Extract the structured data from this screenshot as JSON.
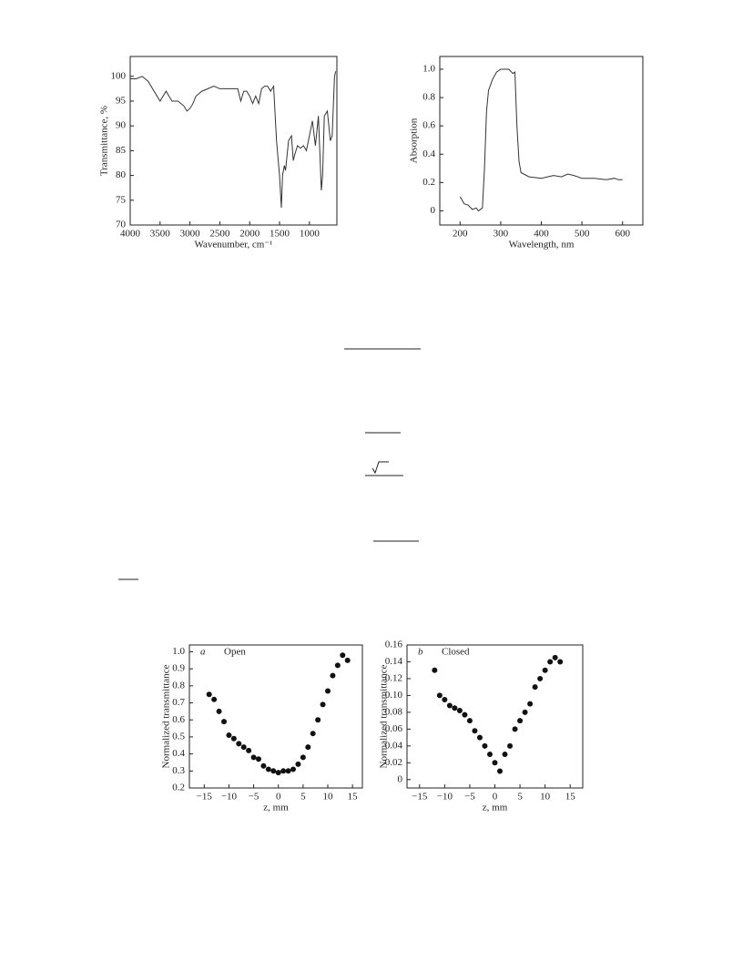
{
  "chart_data": [
    {
      "type": "line",
      "xlabel": "Wavenumber, cm⁻¹",
      "ylabel": "Transmittance, %",
      "xlim": [
        4000,
        540
      ],
      "ylim": [
        70,
        104
      ],
      "xticks": [
        4000,
        3500,
        3000,
        2500,
        2000,
        1500,
        1000
      ],
      "yticks": [
        70,
        75,
        80,
        85,
        90,
        95,
        100
      ],
      "color": "#333333",
      "x": [
        4000,
        3900,
        3800,
        3700,
        3600,
        3500,
        3450,
        3400,
        3350,
        3300,
        3200,
        3100,
        3050,
        3000,
        2950,
        2900,
        2800,
        2700,
        2600,
        2500,
        2400,
        2300,
        2200,
        2150,
        2100,
        2050,
        2000,
        1950,
        1900,
        1850,
        1800,
        1750,
        1700,
        1650,
        1600,
        1550,
        1500,
        1470,
        1450,
        1420,
        1400,
        1350,
        1300,
        1270,
        1250,
        1200,
        1150,
        1100,
        1050,
        1000,
        950,
        900,
        850,
        800,
        780,
        750,
        700,
        650,
        620,
        580,
        560
      ],
      "values": [
        99.5,
        99.5,
        100,
        99,
        97,
        95,
        96,
        97,
        96,
        95,
        95,
        94,
        93,
        93.5,
        94.5,
        96,
        97,
        97.5,
        98,
        97.5,
        97.5,
        97.5,
        97.5,
        95,
        97,
        97,
        96,
        94.5,
        96,
        94.5,
        97.5,
        98,
        98,
        97,
        98,
        87,
        80,
        73.5,
        80,
        82,
        81,
        87,
        88,
        83,
        84,
        86,
        85.5,
        86,
        85,
        88,
        91,
        86,
        92,
        77,
        80,
        92,
        93,
        87,
        88,
        100,
        101
      ]
    },
    {
      "type": "line",
      "xlabel": "Wavelength, nm",
      "ylabel": "Absorption",
      "xlim": [
        150,
        650
      ],
      "ylim": [
        -0.1,
        1.09
      ],
      "xticks": [
        200,
        300,
        400,
        500,
        600
      ],
      "yticks": [
        0,
        0.2,
        0.4,
        0.6,
        0.8,
        {
          "value": 1,
          "label": "1.0"
        }
      ],
      "color": "#333333",
      "x": [
        200,
        210,
        220,
        230,
        240,
        245,
        255,
        260,
        265,
        270,
        280,
        290,
        300,
        320,
        330,
        335,
        340,
        345,
        350,
        370,
        400,
        430,
        450,
        465,
        480,
        500,
        530,
        560,
        580,
        590,
        600
      ],
      "values": [
        0.1,
        0.05,
        0.04,
        0.01,
        0.02,
        0,
        0.02,
        0.3,
        0.7,
        0.85,
        0.93,
        0.98,
        1,
        1,
        0.97,
        0.98,
        0.6,
        0.35,
        0.27,
        0.24,
        0.23,
        0.25,
        0.24,
        0.26,
        0.25,
        0.23,
        0.23,
        0.22,
        0.23,
        0.22,
        0.22
      ]
    },
    {
      "type": "scatter",
      "panel_label": "a",
      "annotation": "Open",
      "xlabel": "z, mm",
      "ylabel": "Normalized transmittance",
      "xlim": [
        -18,
        17
      ],
      "ylim": [
        0.2,
        1.04
      ],
      "xticks": [
        {
          "value": -15,
          "label": "−15"
        },
        {
          "value": -10,
          "label": "−10"
        },
        {
          "value": -5,
          "label": "−5"
        },
        0,
        5,
        10,
        15
      ],
      "yticks": [
        0.2,
        0.3,
        0.4,
        0.5,
        0.6,
        0.7,
        0.8,
        0.9,
        {
          "value": 1,
          "label": "1.0"
        }
      ],
      "color": "#111111",
      "x": [
        -14,
        -13,
        -12,
        -11,
        -10,
        -9,
        -8,
        -7,
        -6,
        -5,
        -4,
        -3,
        -2,
        -1,
        0,
        1,
        2,
        3,
        4,
        5,
        6,
        7,
        8,
        9,
        10,
        11,
        12,
        13,
        14
      ],
      "values": [
        0.75,
        0.72,
        0.65,
        0.59,
        0.51,
        0.49,
        0.46,
        0.44,
        0.42,
        0.38,
        0.37,
        0.33,
        0.31,
        0.3,
        0.29,
        0.3,
        0.3,
        0.31,
        0.34,
        0.38,
        0.44,
        0.52,
        0.6,
        0.69,
        0.77,
        0.86,
        0.92,
        0.98,
        0.95
      ]
    },
    {
      "type": "scatter",
      "panel_label": "b",
      "annotation": "Closed",
      "xlabel": "z, mm",
      "ylabel": "Normalized transmittance",
      "xlim": [
        -17.5,
        17.5
      ],
      "ylim": [
        -0.01,
        0.16
      ],
      "xticks": [
        {
          "value": -15,
          "label": "−15"
        },
        {
          "value": -10,
          "label": "−10"
        },
        {
          "value": -5,
          "label": "−5"
        },
        0,
        5,
        10,
        15
      ],
      "yticks": [
        0,
        0.02,
        0.04,
        0.06,
        0.08,
        {
          "value": 0.1,
          "label": "0.10"
        },
        0.12,
        0.14,
        0.16
      ],
      "color": "#111111",
      "x": [
        -12,
        -11,
        -10,
        -9,
        -8,
        -7,
        -6,
        -5,
        -4,
        -3,
        -2,
        -1,
        0,
        1,
        2,
        3,
        4,
        5,
        6,
        7,
        8,
        9,
        10,
        11,
        12,
        13
      ],
      "values": [
        0.13,
        0.1,
        0.095,
        0.088,
        0.085,
        0.082,
        0.077,
        0.07,
        0.058,
        0.05,
        0.04,
        0.03,
        0.02,
        0.01,
        0.03,
        0.04,
        0.06,
        0.07,
        0.08,
        0.09,
        0.11,
        0.12,
        0.13,
        0.14,
        0.145,
        0.14
      ]
    }
  ]
}
